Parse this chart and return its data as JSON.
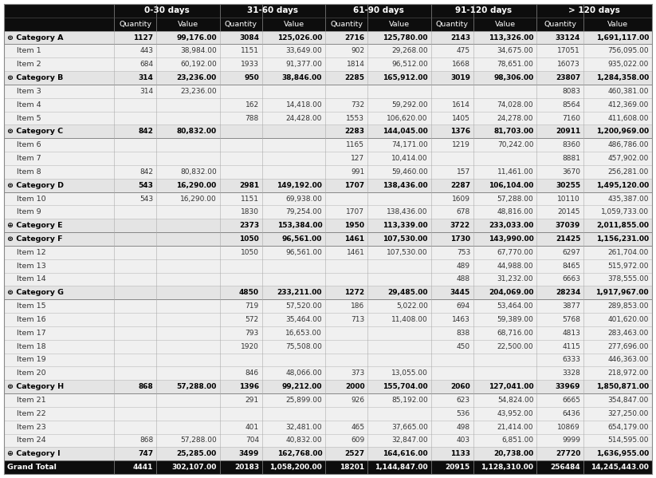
{
  "header_groups": [
    "0-30 days",
    "31-60 days",
    "61-90 days",
    "91-120 days",
    "> 120 days"
  ],
  "rows": [
    {
      "label": "⊚ Category A",
      "bold": true,
      "cat": true,
      "vals": [
        "1127",
        "99,176.00",
        "3084",
        "125,026.00",
        "2716",
        "125,780.00",
        "2143",
        "113,326.00",
        "33124",
        "1,691,117.00"
      ]
    },
    {
      "label": "    Item 1",
      "bold": false,
      "cat": false,
      "vals": [
        "443",
        "38,984.00",
        "1151",
        "33,649.00",
        "902",
        "29,268.00",
        "475",
        "34,675.00",
        "17051",
        "756,095.00"
      ]
    },
    {
      "label": "    Item 2",
      "bold": false,
      "cat": false,
      "vals": [
        "684",
        "60,192.00",
        "1933",
        "91,377.00",
        "1814",
        "96,512.00",
        "1668",
        "78,651.00",
        "16073",
        "935,022.00"
      ]
    },
    {
      "label": "⊚ Category B",
      "bold": true,
      "cat": true,
      "vals": [
        "314",
        "23,236.00",
        "950",
        "38,846.00",
        "2285",
        "165,912.00",
        "3019",
        "98,306.00",
        "23807",
        "1,284,358.00"
      ]
    },
    {
      "label": "    Item 3",
      "bold": false,
      "cat": false,
      "vals": [
        "314",
        "23,236.00",
        "",
        "",
        "",
        "",
        "",
        "",
        "8083",
        "460,381.00"
      ]
    },
    {
      "label": "    Item 4",
      "bold": false,
      "cat": false,
      "vals": [
        "",
        "",
        "162",
        "14,418.00",
        "732",
        "59,292.00",
        "1614",
        "74,028.00",
        "8564",
        "412,369.00"
      ]
    },
    {
      "label": "    Item 5",
      "bold": false,
      "cat": false,
      "vals": [
        "",
        "",
        "788",
        "24,428.00",
        "1553",
        "106,620.00",
        "1405",
        "24,278.00",
        "7160",
        "411,608.00"
      ]
    },
    {
      "label": "⊚ Category C",
      "bold": true,
      "cat": true,
      "vals": [
        "842",
        "80,832.00",
        "",
        "",
        "2283",
        "144,045.00",
        "1376",
        "81,703.00",
        "20911",
        "1,200,969.00"
      ]
    },
    {
      "label": "    Item 6",
      "bold": false,
      "cat": false,
      "vals": [
        "",
        "",
        "",
        "",
        "1165",
        "74,171.00",
        "1219",
        "70,242.00",
        "8360",
        "486,786.00"
      ]
    },
    {
      "label": "    Item 7",
      "bold": false,
      "cat": false,
      "vals": [
        "",
        "",
        "",
        "",
        "127",
        "10,414.00",
        "",
        "",
        "8881",
        "457,902.00"
      ]
    },
    {
      "label": "    Item 8",
      "bold": false,
      "cat": false,
      "vals": [
        "842",
        "80,832.00",
        "",
        "",
        "991",
        "59,460.00",
        "157",
        "11,461.00",
        "3670",
        "256,281.00"
      ]
    },
    {
      "label": "⊚ Category D",
      "bold": true,
      "cat": true,
      "vals": [
        "543",
        "16,290.00",
        "2981",
        "149,192.00",
        "1707",
        "138,436.00",
        "2287",
        "106,104.00",
        "30255",
        "1,495,120.00"
      ]
    },
    {
      "label": "    Item 10",
      "bold": false,
      "cat": false,
      "vals": [
        "543",
        "16,290.00",
        "1151",
        "69,938.00",
        "",
        "",
        "1609",
        "57,288.00",
        "10110",
        "435,387.00"
      ]
    },
    {
      "label": "    Item 9",
      "bold": false,
      "cat": false,
      "vals": [
        "",
        "",
        "1830",
        "79,254.00",
        "1707",
        "138,436.00",
        "678",
        "48,816.00",
        "20145",
        "1,059,733.00"
      ]
    },
    {
      "label": "⊕ Category E",
      "bold": true,
      "cat": true,
      "vals": [
        "",
        "",
        "2373",
        "153,384.00",
        "1950",
        "113,339.00",
        "3722",
        "233,033.00",
        "37039",
        "2,011,855.00"
      ]
    },
    {
      "label": "⊚ Category F",
      "bold": true,
      "cat": true,
      "vals": [
        "",
        "",
        "1050",
        "96,561.00",
        "1461",
        "107,530.00",
        "1730",
        "143,990.00",
        "21425",
        "1,156,231.00"
      ]
    },
    {
      "label": "    Item 12",
      "bold": false,
      "cat": false,
      "vals": [
        "",
        "",
        "1050",
        "96,561.00",
        "1461",
        "107,530.00",
        "753",
        "67,770.00",
        "6297",
        "261,704.00"
      ]
    },
    {
      "label": "    Item 13",
      "bold": false,
      "cat": false,
      "vals": [
        "",
        "",
        "",
        "",
        "",
        "",
        "489",
        "44,988.00",
        "8465",
        "515,972.00"
      ]
    },
    {
      "label": "    Item 14",
      "bold": false,
      "cat": false,
      "vals": [
        "",
        "",
        "",
        "",
        "",
        "",
        "488",
        "31,232.00",
        "6663",
        "378,555.00"
      ]
    },
    {
      "label": "⊚ Category G",
      "bold": true,
      "cat": true,
      "vals": [
        "",
        "",
        "4850",
        "233,211.00",
        "1272",
        "29,485.00",
        "3445",
        "204,069.00",
        "28234",
        "1,917,967.00"
      ]
    },
    {
      "label": "    Item 15",
      "bold": false,
      "cat": false,
      "vals": [
        "",
        "",
        "719",
        "57,520.00",
        "186",
        "5,022.00",
        "694",
        "53,464.00",
        "3877",
        "289,853.00"
      ]
    },
    {
      "label": "    Item 16",
      "bold": false,
      "cat": false,
      "vals": [
        "",
        "",
        "572",
        "35,464.00",
        "713",
        "11,408.00",
        "1463",
        "59,389.00",
        "5768",
        "401,620.00"
      ]
    },
    {
      "label": "    Item 17",
      "bold": false,
      "cat": false,
      "vals": [
        "",
        "",
        "793",
        "16,653.00",
        "",
        "",
        "838",
        "68,716.00",
        "4813",
        "283,463.00"
      ]
    },
    {
      "label": "    Item 18",
      "bold": false,
      "cat": false,
      "vals": [
        "",
        "",
        "1920",
        "75,508.00",
        "",
        "",
        "450",
        "22,500.00",
        "4115",
        "277,696.00"
      ]
    },
    {
      "label": "    Item 19",
      "bold": false,
      "cat": false,
      "vals": [
        "",
        "",
        "",
        "",
        "",
        "",
        "",
        "",
        "6333",
        "446,363.00"
      ]
    },
    {
      "label": "    Item 20",
      "bold": false,
      "cat": false,
      "vals": [
        "",
        "",
        "846",
        "48,066.00",
        "373",
        "13,055.00",
        "",
        "",
        "3328",
        "218,972.00"
      ]
    },
    {
      "label": "⊚ Category H",
      "bold": true,
      "cat": true,
      "vals": [
        "868",
        "57,288.00",
        "1396",
        "99,212.00",
        "2000",
        "155,704.00",
        "2060",
        "127,041.00",
        "33969",
        "1,850,871.00"
      ]
    },
    {
      "label": "    Item 21",
      "bold": false,
      "cat": false,
      "vals": [
        "",
        "",
        "291",
        "25,899.00",
        "926",
        "85,192.00",
        "623",
        "54,824.00",
        "6665",
        "354,847.00"
      ]
    },
    {
      "label": "    Item 22",
      "bold": false,
      "cat": false,
      "vals": [
        "",
        "",
        "",
        "",
        "",
        "",
        "536",
        "43,952.00",
        "6436",
        "327,250.00"
      ]
    },
    {
      "label": "    Item 23",
      "bold": false,
      "cat": false,
      "vals": [
        "",
        "",
        "401",
        "32,481.00",
        "465",
        "37,665.00",
        "498",
        "21,414.00",
        "10869",
        "654,179.00"
      ]
    },
    {
      "label": "    Item 24",
      "bold": false,
      "cat": false,
      "vals": [
        "868",
        "57,288.00",
        "704",
        "40,832.00",
        "609",
        "32,847.00",
        "403",
        "6,851.00",
        "9999",
        "514,595.00"
      ]
    },
    {
      "label": "⊕ Category I",
      "bold": true,
      "cat": true,
      "vals": [
        "747",
        "25,285.00",
        "3499",
        "162,768.00",
        "2527",
        "164,616.00",
        "1133",
        "20,738.00",
        "27720",
        "1,636,955.00"
      ]
    },
    {
      "label": "Grand Total",
      "bold": true,
      "cat": false,
      "grand": true,
      "vals": [
        "4441",
        "302,107.00",
        "20183",
        "1,058,200.00",
        "18201",
        "1,144,847.00",
        "20915",
        "1,128,310.00",
        "256484",
        "14,245,443.00"
      ]
    }
  ],
  "bg_header": "#0d0d0d",
  "bg_cat_odd": "#e4e4e4",
  "bg_cat_even": "#d8d8d8",
  "bg_item_odd": "#f0f0f0",
  "bg_item_even": "#e8e8e8",
  "bg_grand": "#0d0d0d",
  "text_header": "#ffffff",
  "text_cat": "#000000",
  "text_item": "#333333",
  "text_grand": "#ffffff",
  "border_color": "#888888",
  "col_sep_color": "#aaaaaa",
  "fig_w": 8.23,
  "fig_h": 5.99,
  "dpi": 100
}
